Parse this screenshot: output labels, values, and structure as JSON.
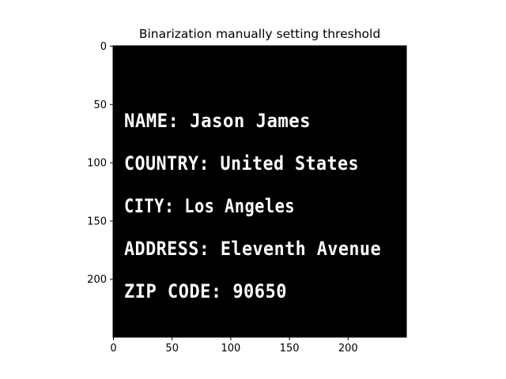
{
  "figure": {
    "title": "Binarization manually setting threshold",
    "background_color": "#000000",
    "foreground_color": "#ffffff"
  },
  "image_lines": [
    "NAME: Jason James",
    "COUNTRY: United States",
    "CITY: Los Angeles",
    "ADDRESS: Eleventh Avenue",
    "ZIP CODE: 90650"
  ],
  "chart_data": {
    "type": "image",
    "title": "Binarization manually setting threshold",
    "xlabel": "",
    "ylabel": "",
    "xlim": [
      0,
      250
    ],
    "ylim": [
      250,
      0
    ],
    "xticks": [
      0,
      50,
      100,
      150,
      200
    ],
    "yticks": [
      0,
      50,
      100,
      150,
      200
    ],
    "xtick_labels": [
      "0",
      "50",
      "100",
      "150",
      "200"
    ],
    "ytick_labels": [
      "0",
      "50",
      "100",
      "150",
      "200"
    ],
    "grid": false
  }
}
